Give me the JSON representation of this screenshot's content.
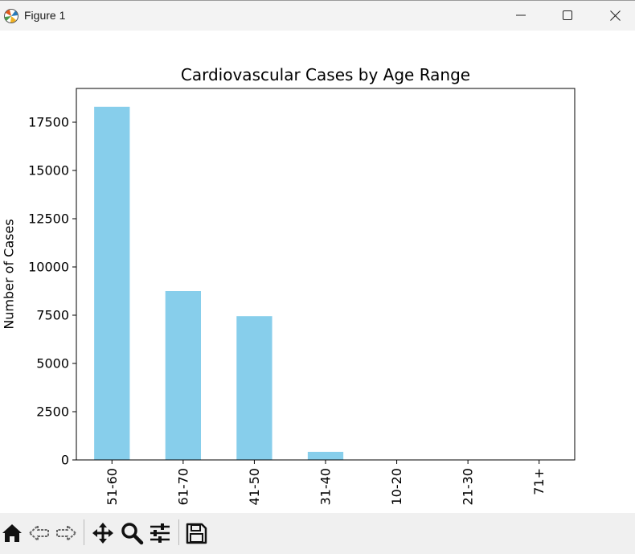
{
  "window": {
    "title": "Figure 1",
    "icon": "matplotlib-logo-icon",
    "controls": [
      "minimize-icon",
      "maximize-icon",
      "close-icon"
    ]
  },
  "chart_data": {
    "type": "bar",
    "title": "Cardiovascular Cases by Age Range",
    "xlabel": "",
    "ylabel": "Number of Cases",
    "categories": [
      "51-60",
      "61-70",
      "41-50",
      "31-40",
      "10-20",
      "21-30",
      "71+"
    ],
    "values": [
      18300,
      8750,
      7450,
      420,
      2,
      1,
      1
    ],
    "ylim": [
      0,
      19250
    ],
    "yticks": [
      "0",
      "2500",
      "5000",
      "7500",
      "10000",
      "12500",
      "15000",
      "17500"
    ],
    "bar_color": "#87ceeb",
    "grid": false,
    "legend": "none"
  },
  "toolbar": {
    "buttons": [
      "home-icon",
      "back-icon",
      "forward-icon",
      "pan-icon",
      "zoom-icon",
      "configure-subplots-icon",
      "save-icon"
    ]
  }
}
